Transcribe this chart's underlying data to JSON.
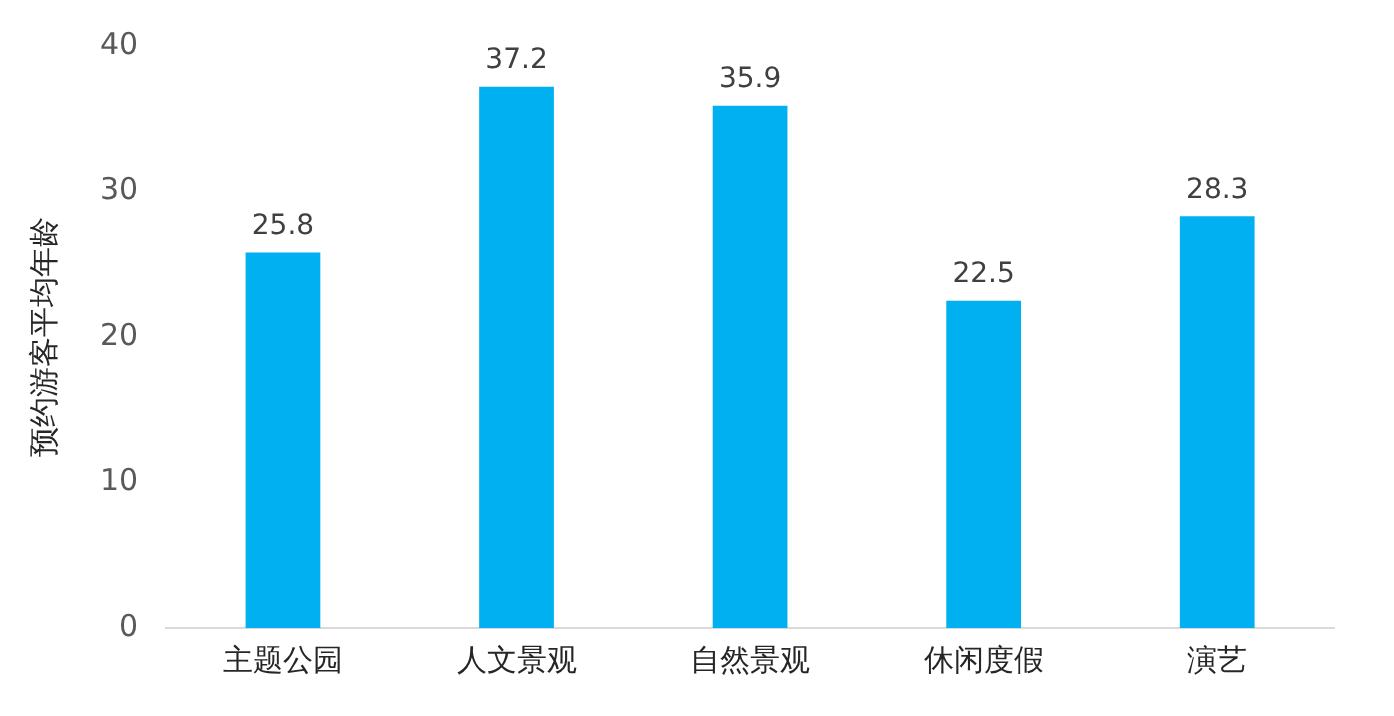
{
  "chart_data": {
    "type": "bar",
    "ylabel": "预约游客平均年龄",
    "categories": [
      "主题公园",
      "人文景观",
      "自然景观",
      "休闲度假",
      "演艺"
    ],
    "values": [
      25.8,
      37.2,
      35.9,
      22.5,
      28.3
    ],
    "color": "#00b0f0",
    "ylim": [
      0,
      40
    ],
    "yticks": [
      0,
      10,
      20,
      30,
      40
    ],
    "grid": false,
    "data_labels": true
  }
}
